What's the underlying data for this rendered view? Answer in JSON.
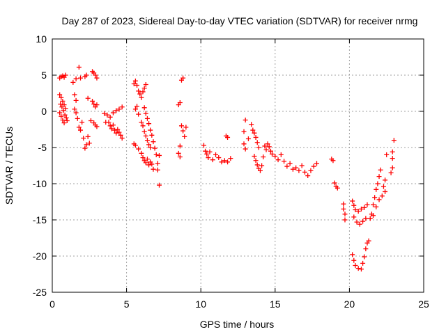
{
  "chart_data": {
    "type": "scatter",
    "title": "Day 287 of 2023, Sidereal Day-to-day VTEC variation (SDTVAR) for receiver nrmg",
    "xlabel": "GPS time / hours",
    "ylabel": "SDTVAR / TECUs",
    "xlim": [
      0,
      25
    ],
    "ylim": [
      -25,
      10
    ],
    "xticks": [
      "0",
      "5",
      "10",
      "15",
      "20",
      "25"
    ],
    "yticks": [
      "-25",
      "-20",
      "-15",
      "-10",
      "-5",
      "0",
      "5",
      "10"
    ],
    "grid": true,
    "marker": "+",
    "series": [
      {
        "name": "SDTVAR",
        "color": "#ff0000",
        "points": [
          [
            0.5,
            4.6
          ],
          [
            0.6,
            4.8
          ],
          [
            0.7,
            4.9
          ],
          [
            0.8,
            4.7
          ],
          [
            0.9,
            5.0
          ],
          [
            0.5,
            2.3
          ],
          [
            0.6,
            1.9
          ],
          [
            0.7,
            1.4
          ],
          [
            0.8,
            0.9
          ],
          [
            0.9,
            0.4
          ],
          [
            0.5,
            -0.2
          ],
          [
            0.6,
            -0.7
          ],
          [
            0.7,
            -1.2
          ],
          [
            0.8,
            -1.6
          ],
          [
            0.55,
            1.0
          ],
          [
            0.65,
            0.6
          ],
          [
            0.75,
            0.1
          ],
          [
            0.85,
            -0.5
          ],
          [
            0.95,
            -0.9
          ],
          [
            1.0,
            -1.3
          ],
          [
            1.4,
            4.0
          ],
          [
            1.6,
            4.5
          ],
          [
            1.8,
            6.1
          ],
          [
            1.9,
            4.6
          ],
          [
            1.5,
            2.3
          ],
          [
            1.6,
            1.5
          ],
          [
            1.5,
            0.3
          ],
          [
            1.6,
            -0.2
          ],
          [
            1.7,
            -1.0
          ],
          [
            1.8,
            -2.2
          ],
          [
            1.9,
            -2.6
          ],
          [
            2.0,
            -1.5
          ],
          [
            2.2,
            4.8
          ],
          [
            2.3,
            5.0
          ],
          [
            2.4,
            1.8
          ],
          [
            2.1,
            -3.7
          ],
          [
            2.2,
            -5.1
          ],
          [
            2.3,
            -4.6
          ],
          [
            2.4,
            -3.5
          ],
          [
            2.5,
            -4.4
          ],
          [
            2.6,
            -1.3
          ],
          [
            2.7,
            5.5
          ],
          [
            2.8,
            5.3
          ],
          [
            2.9,
            5.0
          ],
          [
            3.0,
            4.6
          ],
          [
            2.7,
            1.4
          ],
          [
            2.8,
            1.0
          ],
          [
            2.9,
            0.6
          ],
          [
            3.0,
            0.9
          ],
          [
            2.8,
            -1.6
          ],
          [
            2.9,
            -1.9
          ],
          [
            3.0,
            -2.1
          ],
          [
            3.5,
            -0.3
          ],
          [
            3.7,
            -0.5
          ],
          [
            3.8,
            -1.5
          ],
          [
            3.9,
            -2.0
          ],
          [
            4.0,
            -2.4
          ],
          [
            4.1,
            -1.9
          ],
          [
            4.2,
            -2.6
          ],
          [
            4.3,
            -3.0
          ],
          [
            4.4,
            -2.5
          ],
          [
            4.5,
            -2.9
          ],
          [
            4.6,
            -3.3
          ],
          [
            4.7,
            -3.7
          ],
          [
            3.6,
            -1.5
          ],
          [
            3.9,
            -0.8
          ],
          [
            4.1,
            -0.2
          ],
          [
            4.3,
            0.1
          ],
          [
            4.5,
            0.3
          ],
          [
            4.7,
            0.6
          ],
          [
            5.5,
            3.8
          ],
          [
            5.6,
            4.2
          ],
          [
            5.7,
            3.6
          ],
          [
            5.8,
            2.8
          ],
          [
            5.9,
            2.4
          ],
          [
            6.0,
            1.9
          ],
          [
            6.1,
            2.7
          ],
          [
            6.2,
            3.2
          ],
          [
            6.3,
            3.7
          ],
          [
            5.6,
            0.3
          ],
          [
            5.7,
            0.7
          ],
          [
            5.8,
            -0.4
          ],
          [
            5.5,
            -4.5
          ],
          [
            5.6,
            -4.7
          ],
          [
            5.8,
            -5.2
          ],
          [
            6.0,
            -5.8
          ],
          [
            6.1,
            -6.4
          ],
          [
            6.2,
            -6.8
          ],
          [
            6.3,
            -7.1
          ],
          [
            6.4,
            -6.6
          ],
          [
            6.5,
            -7.4
          ],
          [
            6.6,
            -7.0
          ],
          [
            6.7,
            -7.3
          ],
          [
            6.0,
            -1.5
          ],
          [
            6.1,
            -2.0
          ],
          [
            6.2,
            -2.8
          ],
          [
            6.3,
            -3.4
          ],
          [
            6.4,
            -4.0
          ],
          [
            6.5,
            -4.6
          ],
          [
            6.6,
            -5.0
          ],
          [
            6.2,
            0.5
          ],
          [
            6.3,
            -0.3
          ],
          [
            6.4,
            -1.0
          ],
          [
            6.5,
            -1.7
          ],
          [
            6.6,
            -2.6
          ],
          [
            6.7,
            -3.3
          ],
          [
            6.8,
            -4.2
          ],
          [
            6.9,
            -5.1
          ],
          [
            7.0,
            -6.0
          ],
          [
            7.1,
            -7.2
          ],
          [
            7.1,
            -8.1
          ],
          [
            7.2,
            -10.2
          ],
          [
            7.2,
            -6.1
          ],
          [
            6.8,
            -8.0
          ],
          [
            8.5,
            0.9
          ],
          [
            8.6,
            1.2
          ],
          [
            8.7,
            4.3
          ],
          [
            8.8,
            4.6
          ],
          [
            8.6,
            -4.8
          ],
          [
            8.5,
            -5.8
          ],
          [
            8.6,
            -6.3
          ],
          [
            8.7,
            -2.0
          ],
          [
            8.8,
            -2.7
          ],
          [
            8.9,
            -3.5
          ],
          [
            9.0,
            -2.2
          ],
          [
            10.2,
            -4.7
          ],
          [
            10.3,
            -5.5
          ],
          [
            10.4,
            -5.9
          ],
          [
            10.5,
            -6.4
          ],
          [
            10.6,
            -5.6
          ],
          [
            10.8,
            -6.7
          ],
          [
            11.0,
            -6.0
          ],
          [
            11.2,
            -6.4
          ],
          [
            11.4,
            -7.0
          ],
          [
            11.6,
            -6.8
          ],
          [
            11.8,
            -7.0
          ],
          [
            12.0,
            -6.5
          ],
          [
            11.7,
            -3.4
          ],
          [
            11.8,
            -3.6
          ],
          [
            13.0,
            -1.2
          ],
          [
            12.9,
            -2.8
          ],
          [
            12.9,
            -4.5
          ],
          [
            13.0,
            -5.2
          ],
          [
            13.2,
            -3.8
          ],
          [
            13.4,
            -1.8
          ],
          [
            13.5,
            -2.6
          ],
          [
            13.6,
            -3.0
          ],
          [
            13.7,
            -3.6
          ],
          [
            13.8,
            -4.3
          ],
          [
            13.9,
            -5.0
          ],
          [
            13.6,
            -6.2
          ],
          [
            13.7,
            -6.8
          ],
          [
            13.8,
            -7.4
          ],
          [
            13.9,
            -7.9
          ],
          [
            14.0,
            -8.2
          ],
          [
            14.1,
            -7.5
          ],
          [
            14.2,
            -6.3
          ],
          [
            14.3,
            -4.8
          ],
          [
            14.4,
            -5.3
          ],
          [
            14.5,
            -4.5
          ],
          [
            14.6,
            -4.9
          ],
          [
            14.7,
            -5.5
          ],
          [
            14.8,
            -5.9
          ],
          [
            15.0,
            -6.2
          ],
          [
            15.2,
            -6.7
          ],
          [
            15.4,
            -6.0
          ],
          [
            15.6,
            -6.9
          ],
          [
            15.8,
            -7.6
          ],
          [
            16.0,
            -7.2
          ],
          [
            16.2,
            -8.0
          ],
          [
            16.4,
            -7.8
          ],
          [
            16.6,
            -8.2
          ],
          [
            16.8,
            -7.5
          ],
          [
            17.0,
            -8.4
          ],
          [
            17.2,
            -8.9
          ],
          [
            17.4,
            -8.2
          ],
          [
            17.6,
            -7.6
          ],
          [
            17.8,
            -7.2
          ],
          [
            18.8,
            -6.6
          ],
          [
            18.9,
            -6.8
          ],
          [
            19.0,
            -9.9
          ],
          [
            19.1,
            -10.4
          ],
          [
            19.2,
            -10.6
          ],
          [
            19.6,
            -12.8
          ],
          [
            19.6,
            -13.5
          ],
          [
            19.7,
            -14.2
          ],
          [
            19.7,
            -15.0
          ],
          [
            20.2,
            -12.4
          ],
          [
            20.3,
            -13.0
          ],
          [
            20.4,
            -13.6
          ],
          [
            20.6,
            -13.8
          ],
          [
            20.8,
            -13.5
          ],
          [
            21.0,
            -13.3
          ],
          [
            21.2,
            -12.9
          ],
          [
            20.3,
            -14.6
          ],
          [
            20.5,
            -15.3
          ],
          [
            20.7,
            -15.6
          ],
          [
            20.9,
            -15.2
          ],
          [
            21.1,
            -14.8
          ],
          [
            20.2,
            -19.8
          ],
          [
            20.3,
            -20.6
          ],
          [
            20.4,
            -21.3
          ],
          [
            20.6,
            -21.7
          ],
          [
            20.8,
            -21.8
          ],
          [
            20.9,
            -21.0
          ],
          [
            21.0,
            -20.1
          ],
          [
            21.1,
            -19.0
          ],
          [
            21.2,
            -18.2
          ],
          [
            21.3,
            -17.9
          ],
          [
            21.4,
            -14.8
          ],
          [
            21.5,
            -14.2
          ],
          [
            21.6,
            -12.9
          ],
          [
            21.7,
            -11.9
          ],
          [
            21.8,
            -10.8
          ],
          [
            21.9,
            -10.0
          ],
          [
            22.0,
            -9.0
          ],
          [
            22.1,
            -8.1
          ],
          [
            21.6,
            -14.4
          ],
          [
            21.8,
            -13.2
          ],
          [
            22.0,
            -12.2
          ],
          [
            22.2,
            -11.7
          ],
          [
            22.3,
            -10.4
          ],
          [
            22.4,
            -9.5
          ],
          [
            22.4,
            -11.1
          ],
          [
            22.5,
            -6.0
          ],
          [
            22.8,
            -8.5
          ],
          [
            22.9,
            -7.8
          ],
          [
            22.9,
            -6.5
          ],
          [
            22.9,
            -5.6
          ],
          [
            23.0,
            -4.0
          ]
        ]
      }
    ]
  }
}
